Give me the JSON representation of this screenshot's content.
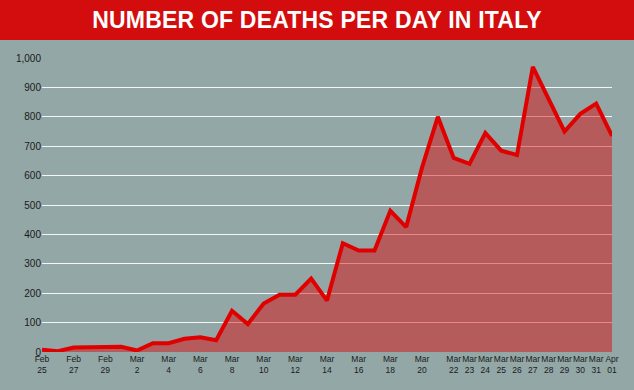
{
  "chart_data": {
    "type": "line",
    "title": "NUMBER OF DEATHS PER DAY IN ITALY",
    "categories": [
      "Feb 25",
      null,
      "Feb 27",
      null,
      "Feb 29",
      null,
      "Mar 2",
      null,
      "Mar 4",
      null,
      "Mar 6",
      null,
      "Mar 8",
      null,
      "Mar 10",
      null,
      "Mar 12",
      null,
      "Mar 14",
      null,
      "Mar 16",
      null,
      "Mar 18",
      null,
      "Mar 20",
      null,
      "Mar 22",
      "Mar 23",
      "Mar 24",
      "Mar 25",
      "Mar 26",
      "Mar 27",
      "Mar 28",
      "Mar 29",
      "Mar 30",
      "Mar 31",
      "Apr 01"
    ],
    "values": [
      8,
      3,
      15,
      15,
      18,
      18,
      5,
      30,
      30,
      45,
      50,
      40,
      140,
      95,
      165,
      195,
      195,
      250,
      175,
      370,
      345,
      345,
      480,
      425,
      627,
      800,
      660,
      640,
      745,
      685,
      670,
      970,
      860,
      750,
      810,
      845,
      735
    ],
    "color": "#e00000",
    "ylim": [
      0,
      1000
    ],
    "yticks": [
      0,
      100,
      200,
      300,
      400,
      500,
      600,
      700,
      800,
      900,
      {
        "value": 1000,
        "label": "1,000"
      }
    ],
    "grid": true
  }
}
